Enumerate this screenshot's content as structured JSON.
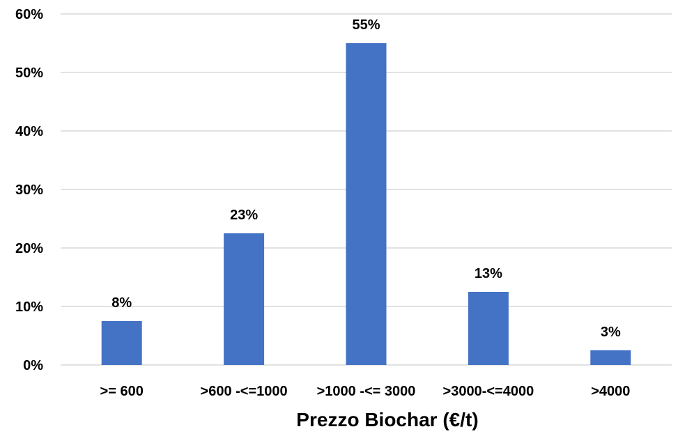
{
  "chart_data": {
    "type": "bar",
    "title": "",
    "xlabel": "Prezzo Biochar (€/t)",
    "ylabel": "",
    "categories": [
      ">= 600",
      ">600 -<=1000",
      ">1000 -<= 3000",
      ">3000-<=4000",
      ">4000"
    ],
    "values": [
      7.5,
      22.5,
      55,
      12.5,
      2.5
    ],
    "data_labels": [
      "8%",
      "23%",
      "55%",
      "13%",
      "3%"
    ],
    "ylim": [
      0,
      60
    ],
    "yticks": [
      0,
      10,
      20,
      30,
      40,
      50,
      60
    ],
    "ytick_labels": [
      "0%",
      "10%",
      "20%",
      "30%",
      "40%",
      "50%",
      "60%"
    ],
    "grid": true,
    "legend": "none",
    "bar_color": "#4472C4",
    "grid_color": "#D9D9D9"
  }
}
